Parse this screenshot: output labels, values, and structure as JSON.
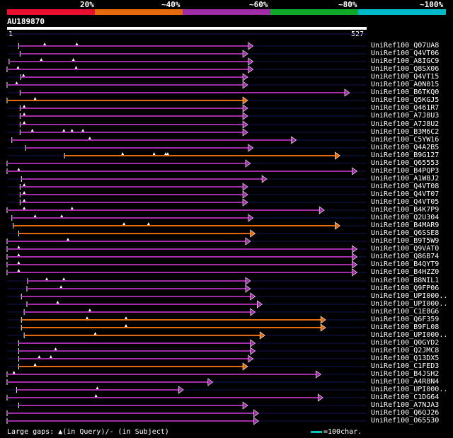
{
  "chart_data": {
    "type": "alignment-overview",
    "query_id": "AU189870",
    "query_length": 527,
    "scale_start": "1",
    "scale_end": "527",
    "identity_legend": [
      {
        "label": "20%",
        "color": "#e8102e"
      },
      {
        "label": "~40%",
        "color": "#e46a0c"
      },
      {
        "label": "~60%",
        "color": "#a02ca8"
      },
      {
        "label": "~80%",
        "color": "#10a828"
      },
      {
        "label": "~100%",
        "color": "#00b8c8"
      }
    ],
    "gap_legend": "Large gaps: ▲(in Query)/- (in Subject)",
    "scale_key": "=100char.",
    "hits": [
      {
        "id": "UniRef100_Q07UA8",
        "start": 18,
        "end": 359,
        "color": "#a02ca8",
        "ins": [
          56,
          103
        ]
      },
      {
        "id": "UniRef100_Q4VT06",
        "start": 20,
        "end": 351,
        "color": "#a02ca8",
        "ins": []
      },
      {
        "id": "UniRef100_A8IGC9",
        "start": 4,
        "end": 359,
        "color": "#a02ca8",
        "ins": [
          51,
          98
        ]
      },
      {
        "id": "UniRef100_Q8SX06",
        "start": 1,
        "end": 359,
        "color": "#a02ca8",
        "ins": [
          17,
          102
        ]
      },
      {
        "id": "UniRef100_Q4VT15",
        "start": 21,
        "end": 351,
        "color": "#a02ca8",
        "ins": [
          25
        ]
      },
      {
        "id": "UniRef100_A0N015",
        "start": 1,
        "end": 351,
        "color": "#a02ca8",
        "ins": [
          15
        ]
      },
      {
        "id": "UniRef100_B6TKQ0",
        "start": 20,
        "end": 500,
        "color": "#a02ca8",
        "ins": []
      },
      {
        "id": "UniRef100_Q5KGJ5",
        "start": 1,
        "end": 351,
        "color": "#e46a0c",
        "ins": [
          42
        ]
      },
      {
        "id": "UniRef100_Q461R7",
        "start": 20,
        "end": 351,
        "color": "#a02ca8",
        "ins": [
          26
        ]
      },
      {
        "id": "UniRef100_A7J8U3",
        "start": 20,
        "end": 351,
        "color": "#a02ca8",
        "ins": [
          26
        ]
      },
      {
        "id": "UniRef100_A7J8U2",
        "start": 20,
        "end": 351,
        "color": "#a02ca8",
        "ins": [
          26
        ]
      },
      {
        "id": "UniRef100_B3M6C2",
        "start": 20,
        "end": 351,
        "color": "#a02ca8",
        "ins": [
          38,
          84,
          96,
          112
        ]
      },
      {
        "id": "UniRef100_C5YW16",
        "start": 8,
        "end": 422,
        "color": "#a02ca8",
        "ins": [
          122
        ]
      },
      {
        "id": "UniRef100_Q4A2B5",
        "start": 28,
        "end": 359,
        "color": "#a02ca8",
        "ins": []
      },
      {
        "id": "UniRef100_B9G127",
        "start": 85,
        "end": 486,
        "color": "#e46a0c",
        "ins": [
          170,
          216,
          233,
          236
        ]
      },
      {
        "id": "UniRef100_Q65553",
        "start": 1,
        "end": 355,
        "color": "#a02ca8",
        "ins": []
      },
      {
        "id": "UniRef100_B4PQP3",
        "start": 1,
        "end": 511,
        "color": "#a02ca8",
        "ins": [
          18
        ]
      },
      {
        "id": "UniRef100_A1W8J2",
        "start": 22,
        "end": 379,
        "color": "#a02ca8",
        "ins": []
      },
      {
        "id": "UniRef100_Q4VT08",
        "start": 20,
        "end": 351,
        "color": "#a02ca8",
        "ins": [
          26
        ]
      },
      {
        "id": "UniRef100_Q4VT07",
        "start": 20,
        "end": 351,
        "color": "#a02ca8",
        "ins": [
          26
        ]
      },
      {
        "id": "UniRef100_Q4VT05",
        "start": 20,
        "end": 351,
        "color": "#a02ca8",
        "ins": [
          26
        ]
      },
      {
        "id": "UniRef100_B4K7P9",
        "start": 1,
        "end": 463,
        "color": "#a02ca8",
        "ins": [
          26,
          96
        ]
      },
      {
        "id": "UniRef100_Q2U304",
        "start": 8,
        "end": 359,
        "color": "#a02ca8",
        "ins": [
          42,
          81
        ]
      },
      {
        "id": "UniRef100_B4MAR9",
        "start": 10,
        "end": 486,
        "color": "#e46a0c",
        "ins": [
          172,
          208
        ]
      },
      {
        "id": "UniRef100_Q6SSE8",
        "start": 18,
        "end": 362,
        "color": "#e46a0c",
        "ins": []
      },
      {
        "id": "UniRef100_B9T5W9",
        "start": 1,
        "end": 355,
        "color": "#a02ca8",
        "ins": [
          90
        ]
      },
      {
        "id": "UniRef100_Q9VAT0",
        "start": 1,
        "end": 511,
        "color": "#a02ca8",
        "ins": [
          18
        ]
      },
      {
        "id": "UniRef100_Q86B74",
        "start": 1,
        "end": 511,
        "color": "#a02ca8",
        "ins": [
          18
        ]
      },
      {
        "id": "UniRef100_B4QYT9",
        "start": 1,
        "end": 511,
        "color": "#a02ca8",
        "ins": [
          18
        ]
      },
      {
        "id": "UniRef100_B4HZZ0",
        "start": 1,
        "end": 511,
        "color": "#a02ca8",
        "ins": [
          18
        ]
      },
      {
        "id": "UniRef100_B8NIL1",
        "start": 31,
        "end": 355,
        "color": "#a02ca8",
        "ins": [
          59,
          84
        ]
      },
      {
        "id": "UniRef100_Q9FP06",
        "start": 30,
        "end": 355,
        "color": "#a02ca8",
        "ins": [
          80
        ]
      },
      {
        "id": "UniRef100_UPI000..",
        "start": 22,
        "end": 362,
        "color": "#a02ca8",
        "ins": []
      },
      {
        "id": "UniRef100_UPI000..",
        "start": 30,
        "end": 372,
        "color": "#a02ca8",
        "ins": [
          75
        ]
      },
      {
        "id": "UniRef100_C1E8G6",
        "start": 26,
        "end": 362,
        "color": "#a02ca8",
        "ins": [
          122
        ]
      },
      {
        "id": "UniRef100_Q6F359",
        "start": 22,
        "end": 465,
        "color": "#e46a0c",
        "ins": [
          118,
          175
        ]
      },
      {
        "id": "UniRef100_B9FL08",
        "start": 22,
        "end": 465,
        "color": "#e46a0c",
        "ins": [
          175
        ]
      },
      {
        "id": "UniRef100_UPI000..",
        "start": 26,
        "end": 376,
        "color": "#e46a0c",
        "ins": [
          130
        ]
      },
      {
        "id": "UniRef100_Q0GYD2",
        "start": 18,
        "end": 362,
        "color": "#a02ca8",
        "ins": []
      },
      {
        "id": "UniRef100_Q2JMC8",
        "start": 18,
        "end": 362,
        "color": "#a02ca8",
        "ins": [
          72
        ]
      },
      {
        "id": "UniRef100_Q13DX5",
        "start": 18,
        "end": 359,
        "color": "#a02ca8",
        "ins": [
          48,
          65
        ]
      },
      {
        "id": "UniRef100_C1FED3",
        "start": 18,
        "end": 351,
        "color": "#e46a0c",
        "ins": [
          42
        ]
      },
      {
        "id": "UniRef100_B4JSH2",
        "start": 1,
        "end": 458,
        "color": "#a02ca8",
        "ins": [
          11
        ]
      },
      {
        "id": "UniRef100_A4R8N4",
        "start": 1,
        "end": 300,
        "color": "#a02ca8",
        "ins": []
      },
      {
        "id": "UniRef100_UPI000..",
        "start": 15,
        "end": 257,
        "color": "#a02ca8",
        "ins": [
          133
        ]
      },
      {
        "id": "UniRef100_C1DG64",
        "start": 1,
        "end": 461,
        "color": "#a02ca8",
        "ins": [
          131
        ]
      },
      {
        "id": "UniRef100_A7NJA3",
        "start": 18,
        "end": 351,
        "color": "#a02ca8",
        "ins": []
      },
      {
        "id": "UniRef100_Q6QJ26",
        "start": 1,
        "end": 367,
        "color": "#a02ca8",
        "ins": []
      },
      {
        "id": "UniRef100_O65530",
        "start": 1,
        "end": 367,
        "color": "#a02ca8",
        "ins": []
      }
    ]
  }
}
